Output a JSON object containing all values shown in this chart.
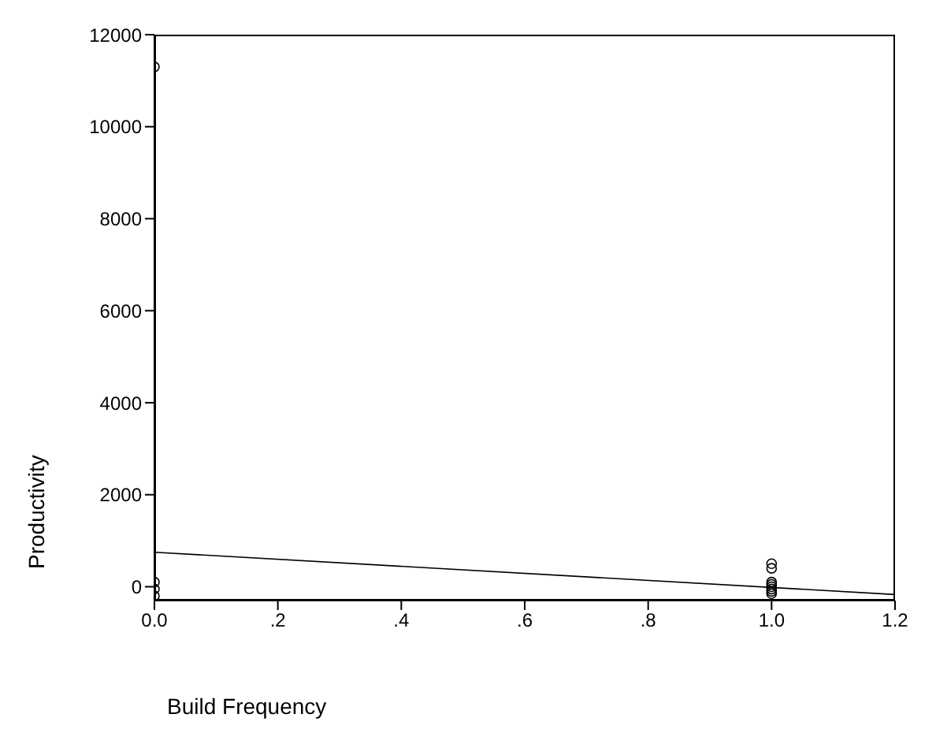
{
  "chart_data": {
    "type": "scatter",
    "xlabel": "Build Frequency",
    "ylabel": "Productivity",
    "xlim": [
      0,
      1.2
    ],
    "ylim": [
      -300,
      12000
    ],
    "xticks": [
      {
        "value": 0,
        "label": "0.0"
      },
      {
        "value": 0.2,
        "label": ".2"
      },
      {
        "value": 0.4,
        "label": ".4"
      },
      {
        "value": 0.6,
        "label": ".6"
      },
      {
        "value": 0.8,
        "label": ".8"
      },
      {
        "value": 1,
        "label": "1.0"
      },
      {
        "value": 1.2,
        "label": "1.2"
      }
    ],
    "yticks": [
      0,
      2000,
      4000,
      6000,
      8000,
      10000,
      12000
    ],
    "grid": false,
    "legend": false,
    "marker": "circle",
    "series": [
      {
        "type": "scatter",
        "color": "#000000",
        "x": [
          0,
          0,
          0,
          0,
          1,
          1,
          1,
          1,
          1,
          1,
          1,
          1
        ],
        "values": [
          11300,
          100,
          -50,
          -200,
          500,
          400,
          100,
          50,
          0,
          -50,
          -100,
          -150
        ]
      },
      {
        "type": "line",
        "color": "#000000",
        "marker": "none",
        "x": [
          0,
          1.2
        ],
        "values": [
          750,
          -170
        ]
      }
    ]
  }
}
